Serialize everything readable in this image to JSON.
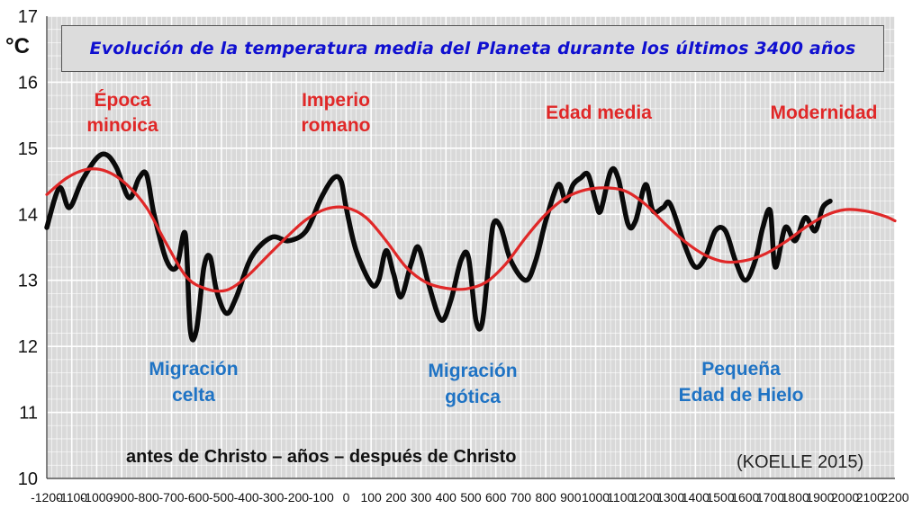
{
  "title": "Evolución de la temperatura media del Planeta durante los últimos 3400 años",
  "unit_label": "°C",
  "annotations": {
    "warm_periods": [
      {
        "line1": "Época",
        "line2": "minoica"
      },
      {
        "line1": "Imperio",
        "line2": "romano"
      },
      {
        "line1": "Edad media",
        "line2": ""
      },
      {
        "line1": "Modernidad",
        "line2": ""
      }
    ],
    "cold_periods": [
      {
        "line1": "Migración",
        "line2": "celta"
      },
      {
        "line1": "Migración",
        "line2": "gótica"
      },
      {
        "line1": "Pequeña",
        "line2": "Edad de Hielo"
      }
    ]
  },
  "x_caption": "antes de Christo – años – después de Christo",
  "source": "(KOELLE 2015)",
  "colors": {
    "raw_series": "#0a0a0a",
    "smoothed_series": "#e02828",
    "warm_text": "#e02828",
    "cold_text": "#1f73c4",
    "title_text": "#1010d0",
    "plot_background": "#d9d9d9"
  },
  "chart_data": {
    "type": "line",
    "xlim": [
      -1200,
      2200
    ],
    "ylim": [
      10,
      17
    ],
    "x_ticks": [
      "-1200",
      "-1100",
      "-1000",
      "-900",
      "-800",
      "-700",
      "-600",
      "-500",
      "-400",
      "-300",
      "-200",
      "-100",
      "0",
      "100",
      "200",
      "300",
      "400",
      "500",
      "600",
      "700",
      "800",
      "900",
      "1000",
      "1100",
      "1200",
      "1300",
      "1400",
      "1500",
      "1600",
      "1700",
      "1800",
      "1900",
      "2000",
      "2100",
      "2200"
    ],
    "y_ticks": [
      "10",
      "11",
      "12",
      "13",
      "14",
      "15",
      "16",
      "17"
    ],
    "grid": true,
    "series": [
      {
        "values": [
          [
            -1200,
            13.8
          ],
          [
            -1150,
            14.4
          ],
          [
            -1110,
            14.1
          ],
          [
            -1060,
            14.5
          ],
          [
            -1000,
            14.85
          ],
          [
            -960,
            14.9
          ],
          [
            -920,
            14.7
          ],
          [
            -870,
            14.25
          ],
          [
            -830,
            14.55
          ],
          [
            -800,
            14.6
          ],
          [
            -770,
            14.0
          ],
          [
            -720,
            13.3
          ],
          [
            -680,
            13.2
          ],
          [
            -645,
            13.7
          ],
          [
            -625,
            12.25
          ],
          [
            -600,
            12.25
          ],
          [
            -570,
            13.2
          ],
          [
            -545,
            13.35
          ],
          [
            -520,
            12.85
          ],
          [
            -480,
            12.5
          ],
          [
            -440,
            12.75
          ],
          [
            -380,
            13.35
          ],
          [
            -300,
            13.65
          ],
          [
            -230,
            13.6
          ],
          [
            -160,
            13.75
          ],
          [
            -100,
            14.25
          ],
          [
            -50,
            14.55
          ],
          [
            -20,
            14.5
          ],
          [
            0,
            14.1
          ],
          [
            40,
            13.45
          ],
          [
            100,
            12.95
          ],
          [
            130,
            13.0
          ],
          [
            160,
            13.45
          ],
          [
            190,
            13.1
          ],
          [
            220,
            12.75
          ],
          [
            260,
            13.25
          ],
          [
            290,
            13.5
          ],
          [
            330,
            12.95
          ],
          [
            380,
            12.4
          ],
          [
            420,
            12.7
          ],
          [
            460,
            13.3
          ],
          [
            490,
            13.35
          ],
          [
            520,
            12.4
          ],
          [
            545,
            12.35
          ],
          [
            570,
            13.2
          ],
          [
            590,
            13.85
          ],
          [
            620,
            13.8
          ],
          [
            660,
            13.3
          ],
          [
            720,
            13.0
          ],
          [
            760,
            13.3
          ],
          [
            800,
            13.9
          ],
          [
            850,
            14.45
          ],
          [
            880,
            14.2
          ],
          [
            910,
            14.45
          ],
          [
            940,
            14.55
          ],
          [
            970,
            14.6
          ],
          [
            1000,
            14.2
          ],
          [
            1020,
            14.05
          ],
          [
            1060,
            14.65
          ],
          [
            1090,
            14.55
          ],
          [
            1130,
            13.85
          ],
          [
            1160,
            13.9
          ],
          [
            1200,
            14.45
          ],
          [
            1230,
            14.05
          ],
          [
            1270,
            14.1
          ],
          [
            1300,
            14.15
          ],
          [
            1360,
            13.5
          ],
          [
            1400,
            13.2
          ],
          [
            1440,
            13.35
          ],
          [
            1480,
            13.75
          ],
          [
            1520,
            13.75
          ],
          [
            1560,
            13.3
          ],
          [
            1600,
            13.0
          ],
          [
            1640,
            13.3
          ],
          [
            1670,
            13.8
          ],
          [
            1700,
            14.05
          ],
          [
            1720,
            13.2
          ],
          [
            1760,
            13.8
          ],
          [
            1800,
            13.6
          ],
          [
            1840,
            13.95
          ],
          [
            1880,
            13.75
          ],
          [
            1910,
            14.1
          ],
          [
            1940,
            14.2
          ]
        ]
      },
      {
        "values": [
          [
            -1200,
            14.3
          ],
          [
            -1120,
            14.55
          ],
          [
            -1040,
            14.68
          ],
          [
            -960,
            14.65
          ],
          [
            -880,
            14.45
          ],
          [
            -800,
            14.1
          ],
          [
            -720,
            13.55
          ],
          [
            -640,
            13.05
          ],
          [
            -560,
            12.87
          ],
          [
            -480,
            12.85
          ],
          [
            -400,
            13.05
          ],
          [
            -320,
            13.35
          ],
          [
            -240,
            13.65
          ],
          [
            -160,
            13.92
          ],
          [
            -80,
            14.08
          ],
          [
            0,
            14.1
          ],
          [
            80,
            13.95
          ],
          [
            160,
            13.6
          ],
          [
            240,
            13.2
          ],
          [
            320,
            12.97
          ],
          [
            400,
            12.88
          ],
          [
            480,
            12.87
          ],
          [
            560,
            12.97
          ],
          [
            640,
            13.25
          ],
          [
            720,
            13.65
          ],
          [
            800,
            14.0
          ],
          [
            880,
            14.25
          ],
          [
            960,
            14.37
          ],
          [
            1040,
            14.4
          ],
          [
            1120,
            14.35
          ],
          [
            1200,
            14.15
          ],
          [
            1280,
            13.85
          ],
          [
            1360,
            13.58
          ],
          [
            1440,
            13.38
          ],
          [
            1520,
            13.28
          ],
          [
            1600,
            13.3
          ],
          [
            1680,
            13.4
          ],
          [
            1760,
            13.58
          ],
          [
            1840,
            13.8
          ],
          [
            1920,
            13.98
          ],
          [
            2000,
            14.07
          ],
          [
            2080,
            14.05
          ],
          [
            2160,
            13.97
          ],
          [
            2200,
            13.9
          ]
        ]
      }
    ]
  }
}
